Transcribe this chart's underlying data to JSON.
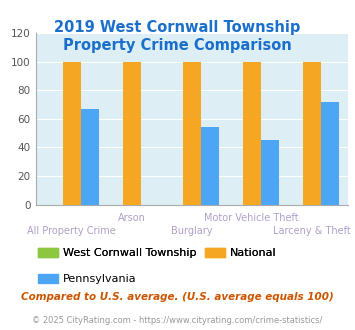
{
  "title": "2019 West Cornwall Township\nProperty Crime Comparison",
  "categories": [
    "All Property Crime",
    "Arson",
    "Burglary",
    "Motor Vehicle Theft",
    "Larceny & Theft"
  ],
  "series": {
    "West Cornwall Township": [
      0,
      0,
      0,
      0,
      0
    ],
    "National": [
      100,
      100,
      100,
      100,
      100
    ],
    "Pennsylvania": [
      67,
      0,
      54,
      45,
      72
    ]
  },
  "colors": {
    "West Cornwall Township": "#8dc63f",
    "National": "#f5a623",
    "Pennsylvania": "#4da6f5"
  },
  "ylim": [
    0,
    120
  ],
  "yticks": [
    0,
    20,
    40,
    60,
    80,
    100,
    120
  ],
  "title_color": "#1a6fcc",
  "title_fontsize": 10.5,
  "cat_label_color": "#b0a0c8",
  "legend_fontsize": 8,
  "footnote1": "Compared to U.S. average. (U.S. average equals 100)",
  "footnote2": "© 2025 CityRating.com - https://www.cityrating.com/crime-statistics/",
  "footnote1_color": "#cc5500",
  "footnote2_color": "#999999",
  "plot_bg_color": "#ddeef5",
  "bar_width": 0.3,
  "upper_cats": [
    "Arson",
    "Motor Vehicle Theft"
  ],
  "lower_cats": [
    "All Property Crime",
    "Burglary",
    "Larceny & Theft"
  ]
}
